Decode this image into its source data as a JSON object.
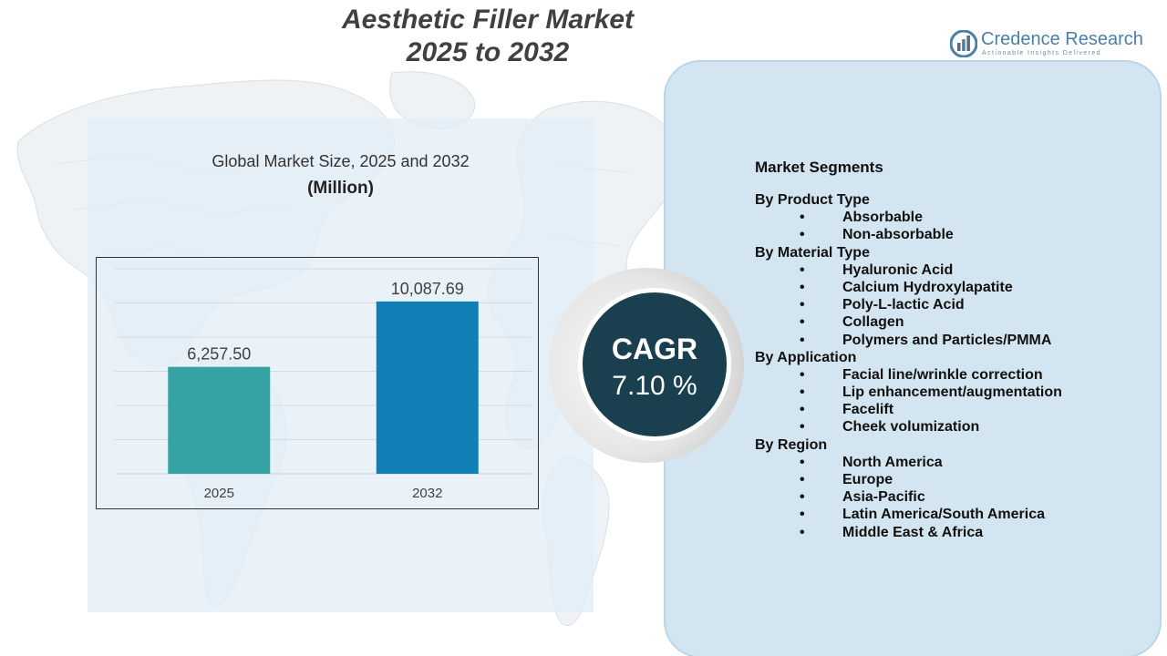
{
  "title": {
    "line1": "Aesthetic Filler Market",
    "line2": "2025 to 2032"
  },
  "logo": {
    "icon": "credence-research-logo-icon",
    "name": "Credence Research",
    "tagline": "Actionable Insights Delivered"
  },
  "chart_data": {
    "type": "bar",
    "title": "Global Market Size, 2025 and 2032",
    "subtitle": "(Million)",
    "categories": [
      "2025",
      "2032"
    ],
    "values": [
      6257.5,
      10087.69
    ],
    "data_labels": [
      "6,257.50",
      "10,087.69"
    ],
    "colors": [
      "#35a3a3",
      "#0f7fb6"
    ],
    "ylim": [
      0,
      12000
    ],
    "grid": true,
    "legend": "none"
  },
  "cagr": {
    "label": "CAGR",
    "value": "7.10 %"
  },
  "segments": {
    "title": "Market Segments",
    "groups": [
      {
        "heading": "By Product Type",
        "items": [
          "Absorbable",
          "Non-absorbable"
        ]
      },
      {
        "heading": "By Material Type",
        "items": [
          "Hyaluronic Acid",
          "Calcium Hydroxylapatite",
          "Poly-L-lactic Acid",
          "Collagen",
          "Polymers and Particles/PMMA"
        ]
      },
      {
        "heading": "By Application",
        "items": [
          "Facial line/wrinkle correction",
          "Lip enhancement/augmentation",
          "Facelift",
          "Cheek volumization"
        ]
      },
      {
        "heading": "By Region",
        "items": [
          "North America",
          "Europe",
          "Asia-Pacific",
          "Latin America/South America",
          "Middle East & Africa"
        ]
      }
    ]
  },
  "colors": {
    "title_text": "#404040",
    "panel_background": "#d3e5f1",
    "cagr_circle": "#1a3f4f",
    "logo_blue": "#4a7fa8"
  }
}
